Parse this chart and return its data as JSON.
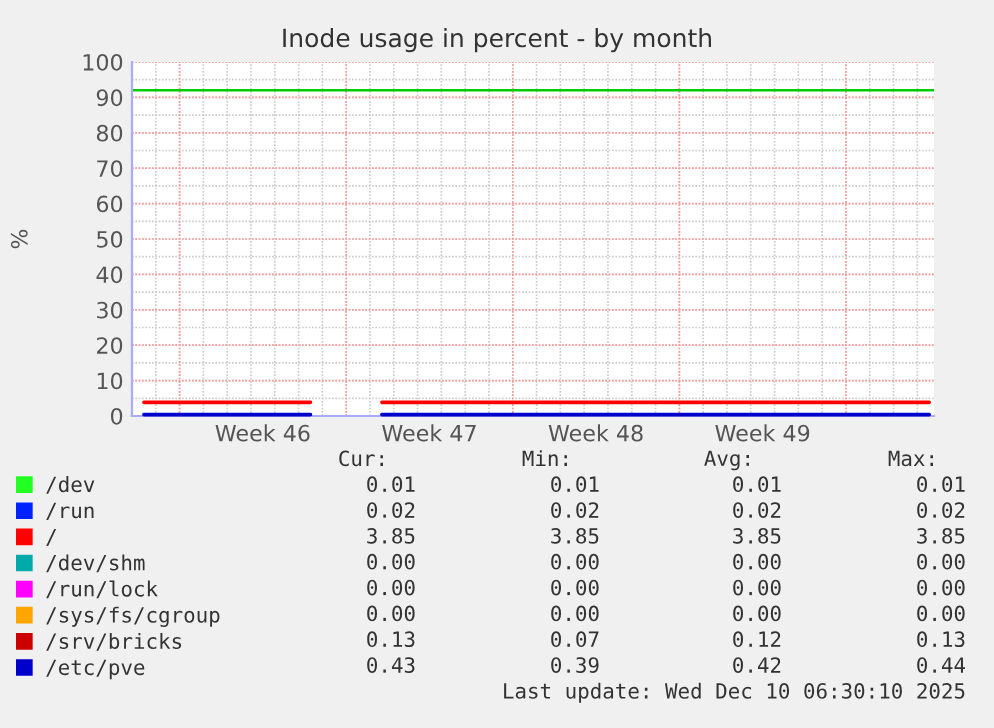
{
  "chart_data": {
    "type": "line",
    "title": "Inode usage in percent - by month",
    "ylabel": "%",
    "categories": [
      null,
      null,
      null,
      null,
      null,
      "Week 46",
      null,
      null,
      null,
      null,
      null,
      null,
      "Week 47",
      null,
      null,
      null,
      null,
      null,
      null,
      "Week 48",
      null,
      null,
      null,
      null,
      null,
      null,
      "Week 49",
      null,
      null,
      null,
      null,
      null,
      null,
      null
    ],
    "series": [
      {
        "name": "/dev",
        "color": "#22ff22",
        "values": [
          null,
          null,
          null,
          null,
          null,
          null,
          null,
          null,
          null,
          null,
          null,
          null,
          null,
          null,
          null,
          null,
          null,
          null,
          null,
          null,
          null,
          null,
          null,
          null,
          null,
          null,
          null,
          null,
          null,
          null,
          null,
          null,
          null,
          null
        ]
      },
      {
        "name": "/run",
        "color": "#0022ff",
        "values": [
          null,
          null,
          null,
          null,
          null,
          null,
          null,
          null,
          null,
          null,
          null,
          null,
          null,
          null,
          null,
          null,
          null,
          null,
          null,
          null,
          null,
          null,
          null,
          null,
          null,
          null,
          null,
          null,
          null,
          null,
          null,
          null,
          null,
          null
        ]
      },
      {
        "name": "/",
        "color": "#ff0000",
        "values": [
          3.85,
          3.85,
          3.85,
          3.85,
          3.85,
          3.85,
          3.85,
          3.85,
          null,
          null,
          3.85,
          3.85,
          3.85,
          3.85,
          3.85,
          3.85,
          3.85,
          3.85,
          3.85,
          3.85,
          3.85,
          3.85,
          3.85,
          3.85,
          3.85,
          3.85,
          3.85,
          3.85,
          3.85,
          3.85,
          3.85,
          3.85,
          3.85,
          3.85
        ]
      },
      {
        "name": "/dev/shm",
        "color": "#00aaaa",
        "values": [
          null,
          null,
          null,
          null,
          null,
          null,
          null,
          null,
          null,
          null,
          null,
          null,
          null,
          null,
          null,
          null,
          null,
          null,
          null,
          null,
          null,
          null,
          null,
          null,
          null,
          null,
          null,
          null,
          null,
          null,
          null,
          null,
          null,
          null
        ]
      },
      {
        "name": "/run/lock",
        "color": "#ff00ff",
        "values": [
          null,
          null,
          null,
          null,
          null,
          null,
          null,
          null,
          null,
          null,
          null,
          null,
          null,
          null,
          null,
          null,
          null,
          null,
          null,
          null,
          null,
          null,
          null,
          null,
          null,
          null,
          null,
          null,
          null,
          null,
          null,
          null,
          null,
          null
        ]
      },
      {
        "name": "/sys/fs/cgroup",
        "color": "#ffa500",
        "values": [
          null,
          null,
          null,
          null,
          null,
          null,
          null,
          null,
          null,
          null,
          null,
          null,
          null,
          null,
          null,
          null,
          null,
          null,
          null,
          null,
          null,
          null,
          null,
          null,
          null,
          null,
          null,
          null,
          null,
          null,
          null,
          null,
          null,
          null
        ]
      },
      {
        "name": "/srv/bricks",
        "color": "#cc0000",
        "values": [
          null,
          null,
          null,
          null,
          null,
          null,
          null,
          null,
          null,
          null,
          null,
          null,
          null,
          null,
          null,
          null,
          null,
          null,
          null,
          null,
          null,
          null,
          null,
          null,
          null,
          null,
          null,
          null,
          null,
          null,
          null,
          null,
          null,
          null
        ]
      },
      {
        "name": "/etc/pve",
        "color": "#0000cc",
        "values": [
          0.4,
          0.4,
          0.4,
          0.4,
          0.4,
          0.4,
          0.4,
          0.4,
          null,
          null,
          0.4,
          0.4,
          0.4,
          0.4,
          0.4,
          0.4,
          0.4,
          0.4,
          0.4,
          0.4,
          0.4,
          0.4,
          0.4,
          0.4,
          0.4,
          0.4,
          0.4,
          0.4,
          0.4,
          0.4,
          0.4,
          0.4,
          0.4,
          0.4
        ]
      }
    ],
    "ylim": [
      0,
      101
    ],
    "yticks": [
      0,
      10,
      20,
      30,
      40,
      50,
      60,
      70,
      80,
      90,
      100
    ],
    "ref_lines": [
      {
        "axis": "y",
        "value": 92,
        "color": "#00cc00"
      }
    ],
    "grid": true,
    "legend": "bottom",
    "marker": "none",
    "line_style": "solid",
    "annotations": [
      "Cur:",
      "Min:",
      "Avg:",
      "Max:",
      "0.01",
      "0.01",
      "0.01",
      "0.01",
      "0.02",
      "0.02",
      "0.02",
      "0.02",
      "3.85",
      "3.85",
      "3.85",
      "3.85",
      "0.00",
      "0.00",
      "0.00",
      "0.00",
      "0.00",
      "0.00",
      "0.00",
      "0.00",
      "0.00",
      "0.00",
      "0.00",
      "0.00",
      "0.13",
      "0.07",
      "0.12",
      "0.13",
      "0.43",
      "0.39",
      "0.42",
      "0.44",
      "Last update: Wed Dec 10 06:30:10 2025"
    ]
  }
}
